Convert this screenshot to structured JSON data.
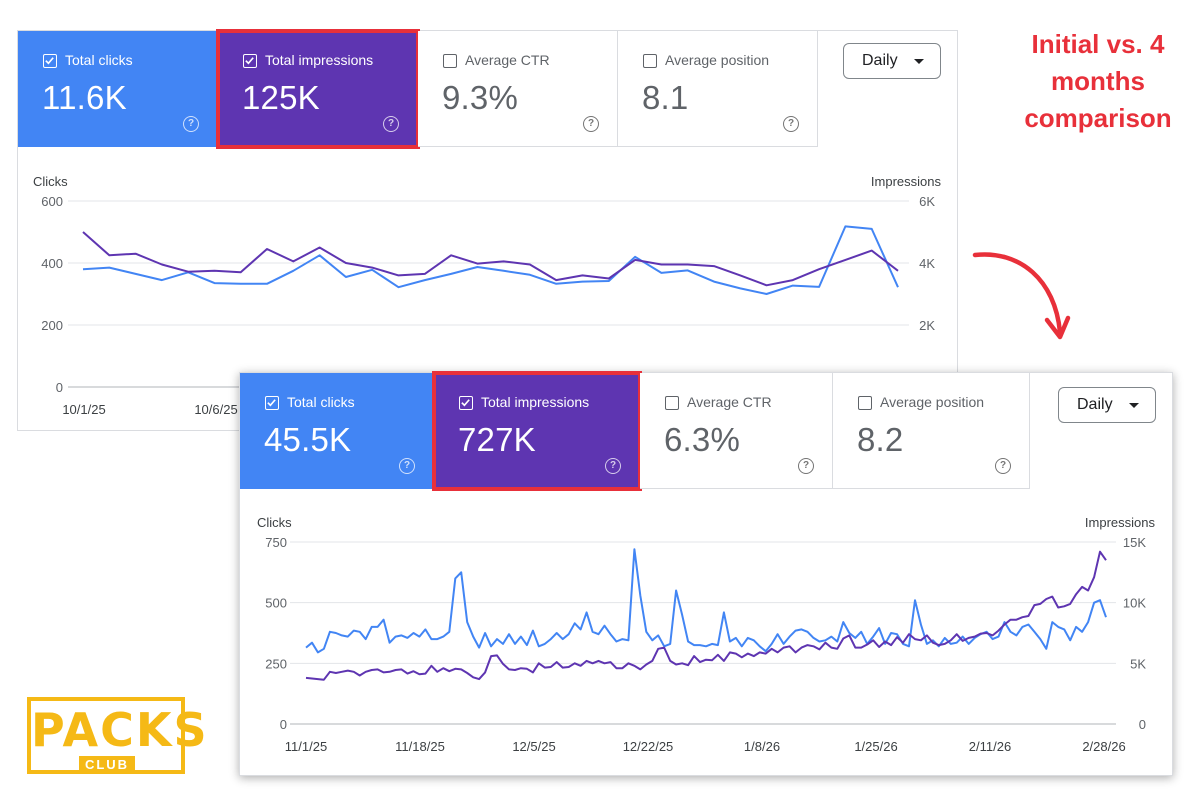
{
  "annotation": "Initial vs. 4 months comparison",
  "logo": {
    "big": "PACKS",
    "small": "CLUB"
  },
  "colors": {
    "clicks": "#4285f4",
    "impressions": "#5e35b1",
    "highlight": "#e8303a",
    "logo": "#f5b916"
  },
  "before": {
    "cards": [
      {
        "label": "Total clicks",
        "value": "11.6K",
        "checked": true
      },
      {
        "label": "Total impressions",
        "value": "125K",
        "checked": true
      },
      {
        "label": "Average CTR",
        "value": "9.3%",
        "checked": false
      },
      {
        "label": "Average position",
        "value": "8.1",
        "checked": false
      }
    ],
    "dropdown": "Daily",
    "chart_data": {
      "type": "line",
      "left_axis_label": "Clicks",
      "right_axis_label": "Impressions",
      "left_ticks": [
        "0",
        "200",
        "400",
        "600"
      ],
      "right_ticks": [
        "",
        "2K",
        "4K",
        "6K"
      ],
      "x_tick_labels": [
        "10/1/25",
        "10/6/25"
      ],
      "ylim_left": [
        0,
        600
      ],
      "ylim_right": [
        0,
        6000
      ],
      "series": [
        {
          "name": "Clicks",
          "axis": "left",
          "values": [
            380,
            385,
            365,
            345,
            370,
            335,
            333,
            333,
            375,
            425,
            355,
            378,
            322,
            345,
            365,
            387,
            375,
            362,
            333,
            340,
            342,
            420,
            368,
            376,
            340,
            318,
            300,
            327,
            323,
            518,
            510,
            322
          ]
        },
        {
          "name": "Impressions",
          "axis": "right",
          "values": [
            5000,
            4250,
            4300,
            3950,
            3720,
            3750,
            3700,
            4450,
            4050,
            4500,
            4000,
            3850,
            3600,
            3650,
            4250,
            3980,
            4050,
            3950,
            3450,
            3600,
            3500,
            4100,
            3950,
            3950,
            3900,
            3600,
            3280,
            3450,
            3800,
            4100,
            4400,
            3750
          ]
        }
      ]
    }
  },
  "after": {
    "cards": [
      {
        "label": "Total clicks",
        "value": "45.5K",
        "checked": true
      },
      {
        "label": "Total impressions",
        "value": "727K",
        "checked": true
      },
      {
        "label": "Average CTR",
        "value": "6.3%",
        "checked": false
      },
      {
        "label": "Average position",
        "value": "8.2",
        "checked": false
      }
    ],
    "dropdown": "Daily",
    "chart_data": {
      "type": "line",
      "left_axis_label": "Clicks",
      "right_axis_label": "Impressions",
      "left_ticks": [
        "0",
        "250",
        "500",
        "750"
      ],
      "right_ticks": [
        "0",
        "5K",
        "10K",
        "15K"
      ],
      "x_tick_labels": [
        "11/1/25",
        "11/18/25",
        "12/5/25",
        "12/22/25",
        "1/8/26",
        "1/25/26",
        "2/11/26",
        "2/28/26"
      ],
      "ylim_left": [
        0,
        750
      ],
      "ylim_right": [
        0,
        15000
      ],
      "series": [
        {
          "name": "Clicks",
          "axis": "left",
          "values": [
            315,
            335,
            295,
            310,
            380,
            375,
            365,
            360,
            385,
            380,
            350,
            400,
            400,
            430,
            335,
            360,
            365,
            355,
            375,
            360,
            390,
            350,
            350,
            360,
            380,
            600,
            625,
            420,
            360,
            315,
            375,
            320,
            350,
            330,
            370,
            330,
            360,
            325,
            385,
            320,
            330,
            350,
            375,
            350,
            370,
            415,
            390,
            460,
            380,
            370,
            405,
            370,
            340,
            350,
            345,
            720,
            530,
            380,
            345,
            365,
            320,
            330,
            550,
            450,
            340,
            325,
            325,
            320,
            330,
            325,
            460,
            340,
            355,
            320,
            355,
            345,
            320,
            300,
            330,
            370,
            330,
            360,
            385,
            390,
            380,
            355,
            340,
            345,
            360,
            340,
            420,
            375,
            355,
            380,
            330,
            360,
            395,
            330,
            375,
            370,
            330,
            320,
            510,
            410,
            330,
            345,
            320,
            355,
            330,
            335,
            360,
            330,
            355,
            370,
            380,
            350,
            360,
            420,
            380,
            365,
            400,
            410,
            380,
            350,
            310,
            420,
            400,
            390,
            345,
            400,
            380,
            420,
            500,
            510,
            440
          ]
        },
        {
          "name": "Impressions",
          "axis": "right",
          "values": [
            3800,
            3750,
            3700,
            3650,
            4300,
            4200,
            4300,
            4400,
            4300,
            4000,
            4300,
            4450,
            4500,
            4250,
            4300,
            4450,
            4500,
            4150,
            4350,
            4100,
            4150,
            4800,
            4300,
            4600,
            4350,
            4550,
            4500,
            4200,
            3850,
            3700,
            4250,
            5600,
            5650,
            4950,
            4500,
            4450,
            4600,
            4550,
            4250,
            5000,
            4650,
            4700,
            5100,
            4650,
            4700,
            5000,
            4800,
            5200,
            5000,
            5200,
            5000,
            5100,
            4600,
            4600,
            5000,
            4800,
            4500,
            4900,
            5200,
            6200,
            6300,
            5200,
            4900,
            5000,
            4850,
            5600,
            5100,
            5300,
            5250,
            5700,
            5200,
            5900,
            5800,
            5500,
            5800,
            5600,
            5900,
            5800,
            6200,
            5900,
            6300,
            6400,
            5900,
            6300,
            6500,
            6400,
            6150,
            6700,
            6300,
            6200,
            7050,
            7300,
            6300,
            6300,
            6550,
            6900,
            6350,
            6800,
            6500,
            7150,
            6700,
            7400,
            7000,
            6900,
            7300,
            6700,
            6500,
            6600,
            6900,
            7400,
            6850,
            7100,
            7200,
            7450,
            7500,
            7300,
            7700,
            8200,
            8600,
            8600,
            8800,
            8900,
            9800,
            9900,
            10300,
            10500,
            9600,
            9700,
            9900,
            10700,
            11300,
            11000,
            12100,
            14200,
            13500
          ]
        }
      ]
    }
  }
}
